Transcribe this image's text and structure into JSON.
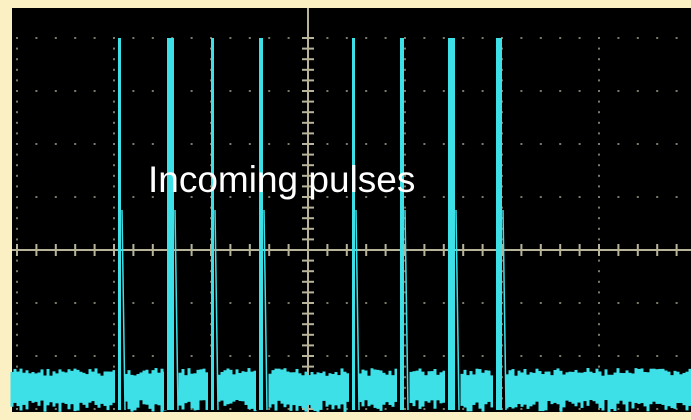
{
  "screen": {
    "caption": "Incoming pulses"
  }
}
